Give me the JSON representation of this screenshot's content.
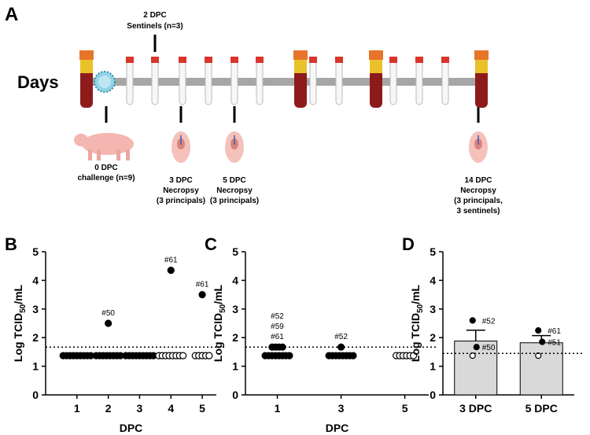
{
  "diagram": {
    "panel_label": "A",
    "axis_label": "Days",
    "events": [
      {
        "lines": [
          "2 DPC",
          "Sentinels (n=3)"
        ]
      },
      {
        "lines": [
          "0 DPC",
          "challenge (n=9)"
        ]
      },
      {
        "lines": [
          "3 DPC",
          "Necropsy",
          "(3 principals)"
        ]
      },
      {
        "lines": [
          "5 DPC",
          "Necropsy",
          "(3 principals)"
        ]
      },
      {
        "lines": [
          "14 DPC",
          "Necropsy",
          "(3 principals,",
          "3 sentinels)"
        ]
      }
    ]
  },
  "chart_data": [
    {
      "type": "scatter",
      "panel_label": "B",
      "y_label": [
        "Log TCID",
        "50",
        "/mL"
      ],
      "x_label": "DPC",
      "xlim": [
        0,
        5.45
      ],
      "xticks": [
        1,
        2,
        3,
        4,
        5
      ],
      "ylim": [
        0,
        5
      ],
      "yticks": [
        0,
        1,
        2,
        3,
        4,
        5
      ],
      "reference_line": 1.67,
      "series": [
        {
          "color": "#000000",
          "fill": "#000000",
          "x": [
            1,
            1,
            1,
            1,
            1,
            1,
            1,
            1,
            1,
            2,
            2,
            2,
            2,
            2,
            2,
            2,
            2,
            2,
            3,
            3,
            3,
            3,
            3,
            3,
            3,
            3,
            3,
            4,
            5
          ],
          "values": [
            1.37,
            1.37,
            1.37,
            1.37,
            1.37,
            1.37,
            1.37,
            1.37,
            1.37,
            1.37,
            1.37,
            1.37,
            1.37,
            1.37,
            1.37,
            1.37,
            1.37,
            2.5,
            1.37,
            1.37,
            1.37,
            1.37,
            1.37,
            1.37,
            1.37,
            1.37,
            1.37,
            4.35,
            3.5
          ]
        },
        {
          "color": "#000000",
          "fill": "#ffffff",
          "x": [
            4,
            4,
            4,
            4,
            4,
            4,
            4,
            4,
            5,
            5,
            5,
            5,
            5
          ],
          "values": [
            1.37,
            1.37,
            1.37,
            1.37,
            1.37,
            1.37,
            1.37,
            1.37,
            1.37,
            1.37,
            1.37,
            1.37,
            1.37
          ]
        }
      ],
      "annotations": [
        {
          "x": 2,
          "y": 2.5,
          "lines": [
            "#50"
          ]
        },
        {
          "x": 4,
          "y": 4.35,
          "lines": [
            "#61"
          ]
        },
        {
          "x": 5,
          "y": 3.5,
          "lines": [
            "#61"
          ]
        }
      ]
    },
    {
      "type": "scatter",
      "panel_label": "C",
      "y_label": [
        "Log TCID",
        "50",
        "/mL"
      ],
      "x_label": "DPC",
      "xlim": [
        0,
        5.75
      ],
      "xticks": [
        1,
        3,
        5
      ],
      "ylim": [
        0,
        5
      ],
      "yticks": [
        0,
        1,
        2,
        3,
        4,
        5
      ],
      "reference_line": 1.67,
      "series": [
        {
          "color": "#000000",
          "fill": "#000000",
          "x": [
            1,
            1,
            1,
            1,
            1,
            1,
            1,
            1,
            1,
            1,
            1,
            1,
            3,
            3,
            3,
            3,
            3,
            3,
            3,
            3,
            3
          ],
          "values": [
            1.67,
            1.67,
            1.67,
            1.67,
            1.37,
            1.37,
            1.37,
            1.37,
            1.37,
            1.37,
            1.37,
            1.37,
            1.67,
            1.37,
            1.37,
            1.37,
            1.37,
            1.37,
            1.37,
            1.37,
            1.37
          ]
        },
        {
          "color": "#000000",
          "fill": "#ffffff",
          "x": [
            5,
            5,
            5,
            5,
            5,
            5
          ],
          "values": [
            1.37,
            1.37,
            1.37,
            1.37,
            1.37,
            1.37
          ]
        }
      ],
      "annotations": [
        {
          "x": 1,
          "y": 1.67,
          "lines": [
            "#52",
            "#59",
            "#61"
          ]
        },
        {
          "x": 3,
          "y": 1.67,
          "lines": [
            "#52"
          ]
        }
      ]
    },
    {
      "type": "bar",
      "panel_label": "D",
      "y_label": [
        "Log TCID",
        "50",
        "/mL"
      ],
      "ylim": [
        0,
        5
      ],
      "yticks": [
        0,
        1,
        2,
        3,
        4,
        5
      ],
      "reference_line": 1.45,
      "categories": [
        "3 DPC",
        "5 DPC"
      ],
      "values": [
        1.88,
        1.82
      ],
      "errors": [
        0.38,
        0.25
      ],
      "color": "#d9d9d9",
      "points": [
        [
          2.6,
          1.67,
          1.37
        ],
        [
          2.25,
          1.85,
          1.37
        ]
      ],
      "point_fills": [
        [
          "#000000",
          "#000000",
          "#ffffff"
        ],
        [
          "#000000",
          "#000000",
          "#ffffff"
        ]
      ],
      "point_labels": [
        [
          "#52",
          "#50",
          null
        ],
        [
          "#61",
          "#51",
          null
        ]
      ]
    }
  ]
}
